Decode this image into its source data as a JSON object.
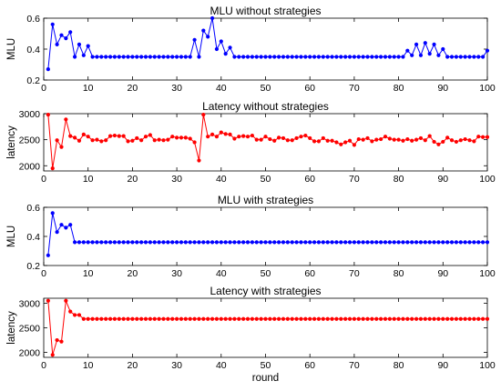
{
  "chart_data": [
    {
      "type": "line",
      "title": "MLU without strategies",
      "ylabel": "MLU",
      "xlabel": "",
      "color": "#0000ff",
      "xlim": [
        0,
        100
      ],
      "ylim": [
        0.2,
        0.6
      ],
      "xticks": [
        "0",
        "10",
        "20",
        "30",
        "40",
        "50",
        "60",
        "70",
        "80",
        "90",
        "100"
      ],
      "yticks": [
        "0.2",
        "0.4",
        "0.6"
      ],
      "x_start": 1,
      "values": [
        0.27,
        0.56,
        0.43,
        0.49,
        0.47,
        0.51,
        0.35,
        0.43,
        0.36,
        0.42,
        0.35,
        0.35,
        0.35,
        0.35,
        0.35,
        0.35,
        0.35,
        0.35,
        0.35,
        0.35,
        0.35,
        0.35,
        0.35,
        0.35,
        0.35,
        0.35,
        0.35,
        0.35,
        0.35,
        0.35,
        0.35,
        0.35,
        0.35,
        0.46,
        0.35,
        0.52,
        0.48,
        0.6,
        0.4,
        0.45,
        0.37,
        0.41,
        0.35,
        0.35,
        0.35,
        0.35,
        0.35,
        0.35,
        0.35,
        0.35,
        0.35,
        0.35,
        0.35,
        0.35,
        0.35,
        0.35,
        0.35,
        0.35,
        0.35,
        0.35,
        0.35,
        0.35,
        0.35,
        0.35,
        0.35,
        0.35,
        0.35,
        0.35,
        0.35,
        0.35,
        0.35,
        0.35,
        0.35,
        0.35,
        0.35,
        0.35,
        0.35,
        0.35,
        0.35,
        0.35,
        0.35,
        0.39,
        0.36,
        0.43,
        0.36,
        0.44,
        0.37,
        0.43,
        0.36,
        0.4,
        0.35,
        0.35,
        0.35,
        0.35,
        0.35,
        0.35,
        0.35,
        0.35,
        0.35,
        0.39
      ]
    },
    {
      "type": "line",
      "title": "Latency without strategies",
      "ylabel": "latency",
      "xlabel": "",
      "color": "#ff0000",
      "xlim": [
        0,
        100
      ],
      "ylim": [
        1900,
        3000
      ],
      "xticks": [
        "0",
        "10",
        "20",
        "30",
        "40",
        "50",
        "60",
        "70",
        "80",
        "90",
        "100"
      ],
      "yticks": [
        "2000",
        "2500",
        "3000"
      ],
      "x_start": 1,
      "values": [
        2980,
        1950,
        2490,
        2360,
        2890,
        2570,
        2540,
        2480,
        2600,
        2560,
        2490,
        2500,
        2470,
        2490,
        2570,
        2580,
        2570,
        2570,
        2470,
        2480,
        2530,
        2490,
        2560,
        2590,
        2490,
        2500,
        2490,
        2500,
        2560,
        2540,
        2540,
        2540,
        2520,
        2450,
        2100,
        2980,
        2560,
        2600,
        2560,
        2640,
        2610,
        2600,
        2520,
        2560,
        2570,
        2560,
        2580,
        2500,
        2500,
        2560,
        2510,
        2480,
        2540,
        2530,
        2490,
        2490,
        2530,
        2560,
        2580,
        2530,
        2470,
        2470,
        2530,
        2480,
        2480,
        2450,
        2410,
        2450,
        2480,
        2400,
        2510,
        2500,
        2530,
        2470,
        2500,
        2510,
        2560,
        2520,
        2500,
        2500,
        2480,
        2510,
        2480,
        2500,
        2530,
        2490,
        2570,
        2460,
        2410,
        2460,
        2540,
        2490,
        2460,
        2490,
        2510,
        2490,
        2470,
        2560,
        2550,
        2550
      ]
    },
    {
      "type": "line",
      "title": "MLU with strategies",
      "ylabel": "MLU",
      "xlabel": "",
      "color": "#0000ff",
      "xlim": [
        0,
        100
      ],
      "ylim": [
        0.2,
        0.6
      ],
      "xticks": [
        "0",
        "10",
        "20",
        "30",
        "40",
        "50",
        "60",
        "70",
        "80",
        "90",
        "100"
      ],
      "yticks": [
        "0.2",
        "0.4",
        "0.6"
      ],
      "x_start": 1,
      "values": [
        0.27,
        0.56,
        0.43,
        0.48,
        0.46,
        0.48,
        0.36,
        0.36,
        0.36,
        0.36,
        0.36,
        0.36,
        0.36,
        0.36,
        0.36,
        0.36,
        0.36,
        0.36,
        0.36,
        0.36,
        0.36,
        0.36,
        0.36,
        0.36,
        0.36,
        0.36,
        0.36,
        0.36,
        0.36,
        0.36,
        0.36,
        0.36,
        0.36,
        0.36,
        0.36,
        0.36,
        0.36,
        0.36,
        0.36,
        0.36,
        0.36,
        0.36,
        0.36,
        0.36,
        0.36,
        0.36,
        0.36,
        0.36,
        0.36,
        0.36,
        0.36,
        0.36,
        0.36,
        0.36,
        0.36,
        0.36,
        0.36,
        0.36,
        0.36,
        0.36,
        0.36,
        0.36,
        0.36,
        0.36,
        0.36,
        0.36,
        0.36,
        0.36,
        0.36,
        0.36,
        0.36,
        0.36,
        0.36,
        0.36,
        0.36,
        0.36,
        0.36,
        0.36,
        0.36,
        0.36,
        0.36,
        0.36,
        0.36,
        0.36,
        0.36,
        0.36,
        0.36,
        0.36,
        0.36,
        0.36,
        0.36,
        0.36,
        0.36,
        0.36,
        0.36,
        0.36,
        0.36,
        0.36,
        0.36,
        0.36
      ]
    },
    {
      "type": "line",
      "title": "Latency with strategies",
      "ylabel": "latency",
      "xlabel": "round",
      "color": "#ff0000",
      "xlim": [
        0,
        100
      ],
      "ylim": [
        1900,
        3100
      ],
      "xticks": [
        "0",
        "10",
        "20",
        "30",
        "40",
        "50",
        "60",
        "70",
        "80",
        "90",
        "100"
      ],
      "yticks": [
        "2000",
        "2500",
        "3000"
      ],
      "x_start": 1,
      "values": [
        3050,
        1950,
        2250,
        2220,
        3050,
        2830,
        2760,
        2760,
        2680,
        2680,
        2680,
        2680,
        2680,
        2680,
        2680,
        2680,
        2680,
        2680,
        2680,
        2680,
        2680,
        2680,
        2680,
        2680,
        2680,
        2680,
        2680,
        2680,
        2680,
        2680,
        2680,
        2680,
        2680,
        2680,
        2680,
        2680,
        2680,
        2680,
        2680,
        2680,
        2680,
        2680,
        2680,
        2680,
        2680,
        2680,
        2680,
        2680,
        2680,
        2680,
        2680,
        2680,
        2680,
        2680,
        2680,
        2680,
        2680,
        2680,
        2680,
        2680,
        2680,
        2680,
        2680,
        2680,
        2680,
        2680,
        2680,
        2680,
        2680,
        2680,
        2680,
        2680,
        2680,
        2680,
        2680,
        2680,
        2680,
        2680,
        2680,
        2680,
        2680,
        2680,
        2680,
        2680,
        2680,
        2680,
        2680,
        2680,
        2680,
        2680,
        2680,
        2680,
        2680,
        2680,
        2680,
        2680,
        2680,
        2680,
        2680,
        2680
      ]
    }
  ]
}
